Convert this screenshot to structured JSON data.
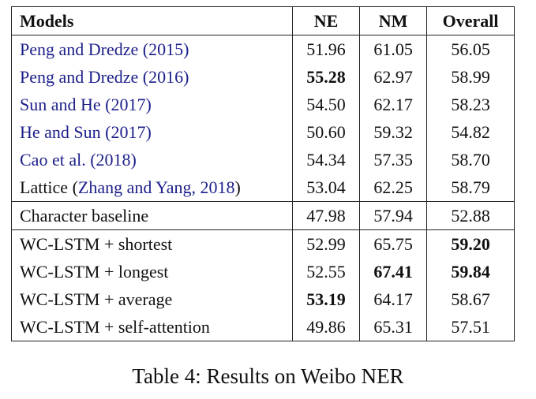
{
  "table": {
    "header": [
      "Models",
      "NE",
      "NM",
      "Overall"
    ],
    "groups": [
      {
        "rows": [
          {
            "model": [
              {
                "text": "Peng and Dredze (2015)",
                "cite": true
              }
            ],
            "cells": [
              "51.96",
              "61.05",
              "56.05"
            ],
            "bold": []
          },
          {
            "model": [
              {
                "text": "Peng and Dredze (2016)",
                "cite": true
              }
            ],
            "cells": [
              "55.28",
              "62.97",
              "58.99"
            ],
            "bold": [
              0
            ]
          },
          {
            "model": [
              {
                "text": "Sun and He (2017)",
                "cite": true
              }
            ],
            "cells": [
              "54.50",
              "62.17",
              "58.23"
            ],
            "bold": []
          },
          {
            "model": [
              {
                "text": "He and Sun (2017)",
                "cite": true
              }
            ],
            "cells": [
              "50.60",
              "59.32",
              "54.82"
            ],
            "bold": []
          },
          {
            "model": [
              {
                "text": "Cao et al. (2018)",
                "cite": true
              }
            ],
            "cells": [
              "54.34",
              "57.35",
              "58.70"
            ],
            "bold": []
          },
          {
            "model": [
              {
                "text": "Lattice ("
              },
              {
                "text": "Zhang and Yang, 2018",
                "cite": true
              },
              {
                "text": ")"
              }
            ],
            "cells": [
              "53.04",
              "62.25",
              "58.79"
            ],
            "bold": []
          }
        ]
      },
      {
        "rows": [
          {
            "model": [
              {
                "text": "Character baseline"
              }
            ],
            "cells": [
              "47.98",
              "57.94",
              "52.88"
            ],
            "bold": []
          }
        ]
      },
      {
        "rows": [
          {
            "model": [
              {
                "text": "WC-LSTM + shortest"
              }
            ],
            "cells": [
              "52.99",
              "65.75",
              "59.20"
            ],
            "bold": [
              2
            ]
          },
          {
            "model": [
              {
                "text": "WC-LSTM + longest"
              }
            ],
            "cells": [
              "52.55",
              "67.41",
              "59.84"
            ],
            "bold": [
              1,
              2
            ]
          },
          {
            "model": [
              {
                "text": "WC-LSTM + average"
              }
            ],
            "cells": [
              "53.19",
              "64.17",
              "58.67"
            ],
            "bold": [
              0
            ]
          },
          {
            "model": [
              {
                "text": "WC-LSTM + self-attention"
              }
            ],
            "cells": [
              "49.86",
              "65.31",
              "57.51"
            ],
            "bold": []
          }
        ]
      }
    ]
  },
  "caption": "Table 4: Results on Weibo NER"
}
